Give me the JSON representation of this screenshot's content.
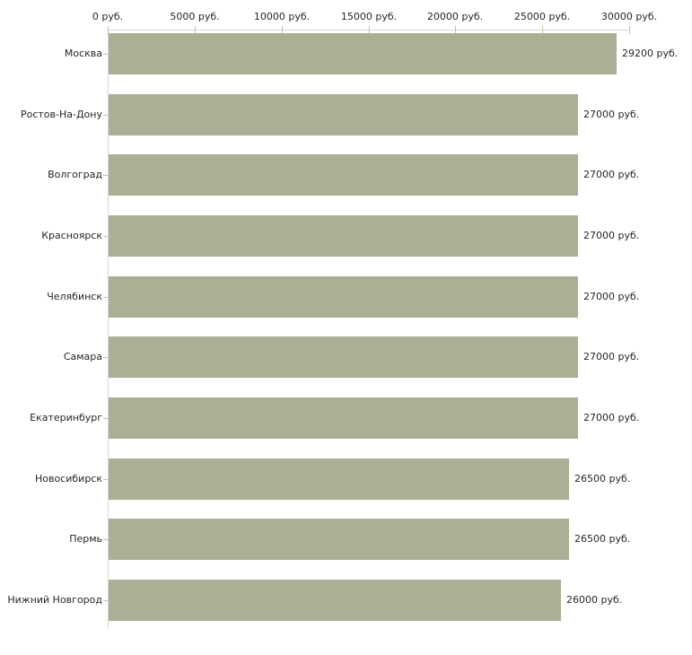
{
  "chart_data": {
    "type": "bar",
    "orientation": "horizontal",
    "title": "",
    "xlabel": "",
    "ylabel": "",
    "categories": [
      "Москва",
      "Ростов-На-Дону",
      "Волгоград",
      "Красноярск",
      "Челябинск",
      "Самара",
      "Екатеринбург",
      "Новосибирск",
      "Пермь",
      "Нижний Новгород"
    ],
    "values": [
      29200,
      27000,
      27000,
      27000,
      27000,
      27000,
      27000,
      26500,
      26500,
      26000
    ],
    "value_labels": [
      "29200 руб.",
      "27000 руб.",
      "27000 руб.",
      "27000 руб.",
      "27000 руб.",
      "27000 руб.",
      "27000 руб.",
      "26500 руб.",
      "26500 руб.",
      "26000 руб."
    ],
    "x_axis": {
      "min": 0,
      "max": 30000,
      "tick_values": [
        0,
        5000,
        10000,
        15000,
        20000,
        25000,
        30000
      ],
      "tick_labels": [
        "0 руб.",
        "5000 руб.",
        "10000 руб.",
        "15000 руб.",
        "20000 руб.",
        "25000 руб.",
        "30000 руб."
      ],
      "unit": "руб."
    },
    "legend": null,
    "grid": false,
    "colors": {
      "bar": "#a9b095",
      "axis_line": "#d9d9d9",
      "tick_mark": "#c2c2a4",
      "text": "#262626",
      "background": "#ffffff"
    }
  }
}
